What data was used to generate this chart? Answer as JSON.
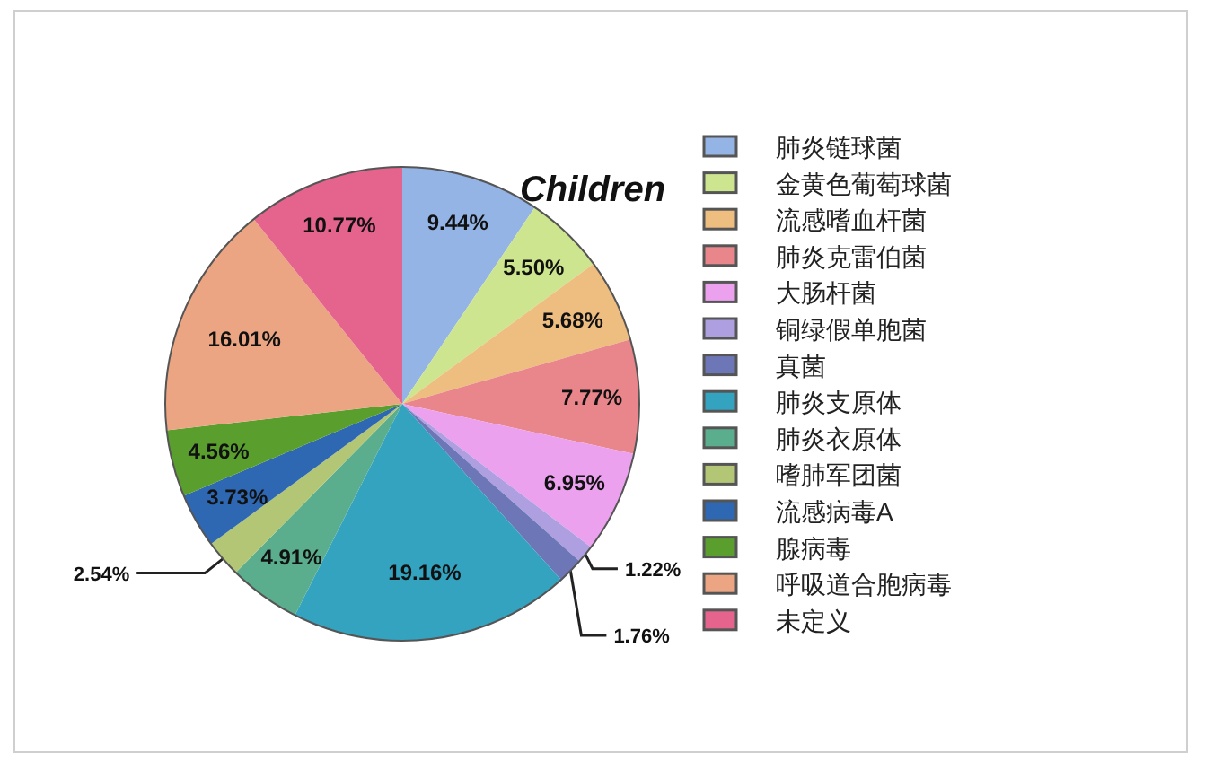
{
  "chart_data": {
    "type": "pie",
    "title": "Children",
    "categories": [
      "肺炎链球菌",
      "金黄色葡萄球菌",
      "流感嗜血杆菌",
      "肺炎克雷伯菌",
      "大肠杆菌",
      "铜绿假单胞菌",
      "真菌",
      "肺炎支原体",
      "肺炎衣原体",
      "嗜肺军团菌",
      "流感病毒A",
      "腺病毒",
      "呼吸道合胞病毒",
      "未定义"
    ],
    "values": [
      9.44,
      5.5,
      5.68,
      7.77,
      6.95,
      1.22,
      1.76,
      19.16,
      4.91,
      2.54,
      3.73,
      4.56,
      16.01,
      10.77
    ],
    "value_labels": [
      "9.44%",
      "5.50%",
      "5.68%",
      "7.77%",
      "6.95%",
      "1.22%",
      "1.76%",
      "19.16%",
      "4.91%",
      "2.54%",
      "3.73%",
      "4.56%",
      "16.01%",
      "10.77%"
    ],
    "colors": [
      "#93b4e4",
      "#cde58f",
      "#eebd80",
      "#e8868b",
      "#eba1ee",
      "#ad9fe0",
      "#6d77b8",
      "#33a3c0",
      "#5aae8e",
      "#b3c676",
      "#2e67b2",
      "#5a9e2e",
      "#eba583",
      "#e4648e"
    ],
    "legend": "right"
  }
}
